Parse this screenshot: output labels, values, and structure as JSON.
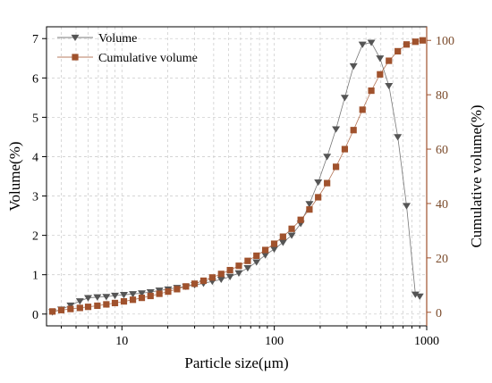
{
  "chart_data": {
    "type": "scatter",
    "xlabel": "Particle size(μm)",
    "ylabel_left": "Volume(%)",
    "ylabel_right": "Cumulative volume(%)",
    "x_scale": "log",
    "xlim": [
      3.2,
      1000
    ],
    "ylim_left": [
      -0.3,
      7.3
    ],
    "ylim_right": [
      -5,
      105
    ],
    "x_ticks": [
      10,
      100,
      1000
    ],
    "x_tick_labels": [
      "10",
      "100",
      "1000"
    ],
    "y_left_ticks": [
      0,
      1,
      2,
      3,
      4,
      5,
      6,
      7
    ],
    "y_left_tick_labels": [
      "0",
      "1",
      "2",
      "3",
      "4",
      "5",
      "6",
      "7"
    ],
    "y_right_ticks": [
      0,
      20,
      40,
      60,
      80,
      100
    ],
    "y_right_tick_labels": [
      "0",
      "20",
      "40",
      "60",
      "80",
      "100"
    ],
    "grid": true,
    "legend_position": "top-left",
    "series": [
      {
        "name": "Volume",
        "axis": "left",
        "marker": "triangle-down",
        "color": "#555555",
        "x": [
          3.5,
          4.0,
          4.6,
          5.3,
          6.0,
          6.9,
          7.9,
          9.0,
          10.3,
          11.8,
          13.5,
          15.4,
          17.6,
          20.1,
          23.0,
          26.3,
          30.0,
          34.3,
          39.2,
          44.8,
          51.2,
          58.5,
          66.9,
          76.4,
          87.3,
          99.8,
          114,
          130,
          149,
          170,
          194,
          222,
          254,
          290,
          331,
          379,
          433,
          494,
          565,
          646,
          738,
          843,
          900
        ],
        "y": [
          0.05,
          0.12,
          0.22,
          0.33,
          0.41,
          0.43,
          0.44,
          0.47,
          0.49,
          0.51,
          0.53,
          0.56,
          0.6,
          0.63,
          0.67,
          0.7,
          0.74,
          0.78,
          0.83,
          0.88,
          0.95,
          1.04,
          1.17,
          1.32,
          1.5,
          1.65,
          1.82,
          2.0,
          2.3,
          2.8,
          3.35,
          4.0,
          4.7,
          5.5,
          6.3,
          6.85,
          6.9,
          6.5,
          5.8,
          4.5,
          2.75,
          0.5,
          0.45
        ]
      },
      {
        "name": "Cumulative volume",
        "axis": "right",
        "marker": "square",
        "color": "#a0522d",
        "x": [
          3.5,
          4.0,
          4.6,
          5.3,
          6.0,
          6.9,
          7.9,
          9.0,
          10.3,
          11.8,
          13.5,
          15.4,
          17.6,
          20.1,
          23.0,
          26.3,
          30.0,
          34.3,
          39.2,
          44.8,
          51.2,
          58.5,
          66.9,
          76.4,
          87.3,
          99.8,
          114,
          130,
          149,
          170,
          194,
          222,
          254,
          290,
          331,
          379,
          433,
          494,
          565,
          646,
          738,
          843,
          940
        ],
        "y": [
          0.3,
          0.8,
          1.2,
          1.6,
          2.0,
          2.4,
          2.9,
          3.4,
          4.0,
          4.6,
          5.3,
          6.0,
          6.8,
          7.6,
          8.5,
          9.5,
          10.5,
          11.6,
          12.8,
          14.1,
          15.5,
          17.1,
          18.9,
          20.8,
          22.9,
          25.2,
          27.8,
          30.7,
          34.0,
          37.8,
          42.3,
          47.5,
          53.5,
          60.0,
          67.0,
          74.5,
          81.5,
          87.5,
          92.5,
          96.0,
          98.5,
          99.5,
          100
        ]
      }
    ]
  }
}
